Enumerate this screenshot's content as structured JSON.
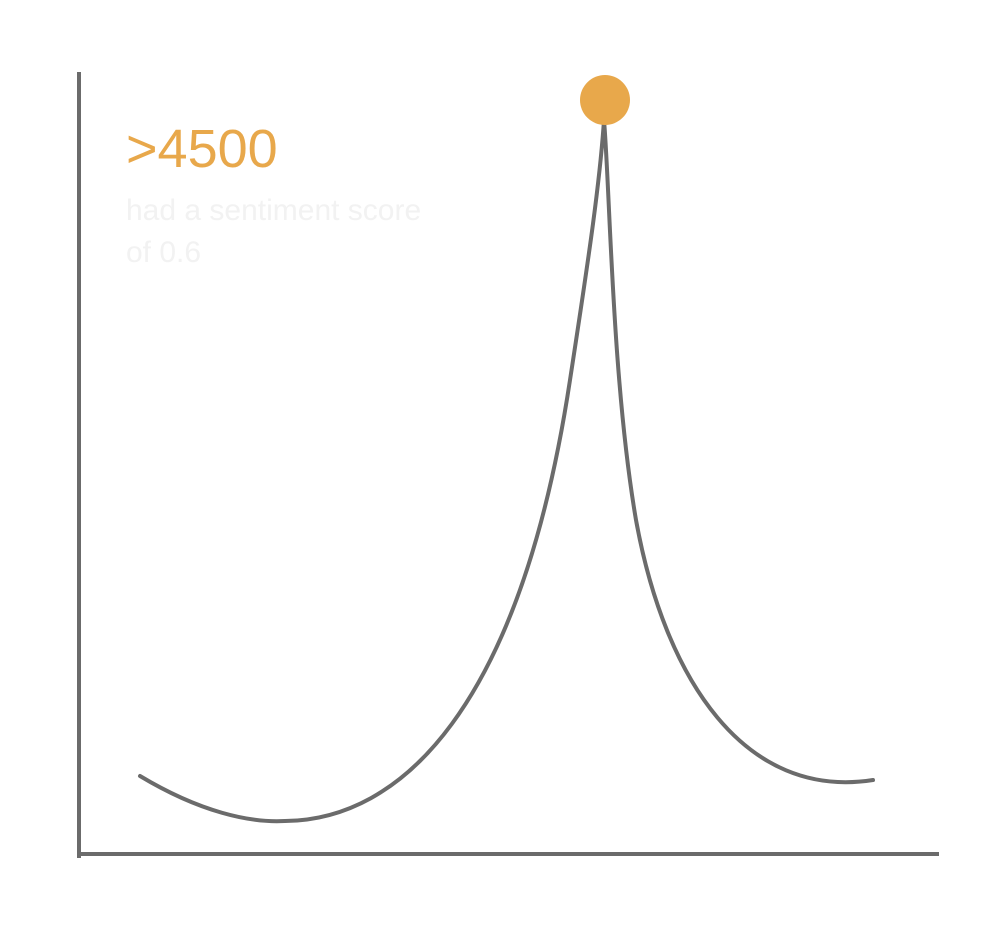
{
  "chart_data": {
    "type": "line",
    "annotation": {
      "value": ">4500",
      "caption": "had a sentiment score of 0.6"
    },
    "colors": {
      "axis": "#6b6b6b",
      "line": "#6b6b6b",
      "highlight": "#e8a84b",
      "caption": "#f2f2f2"
    },
    "grid": false,
    "legend": "none"
  }
}
